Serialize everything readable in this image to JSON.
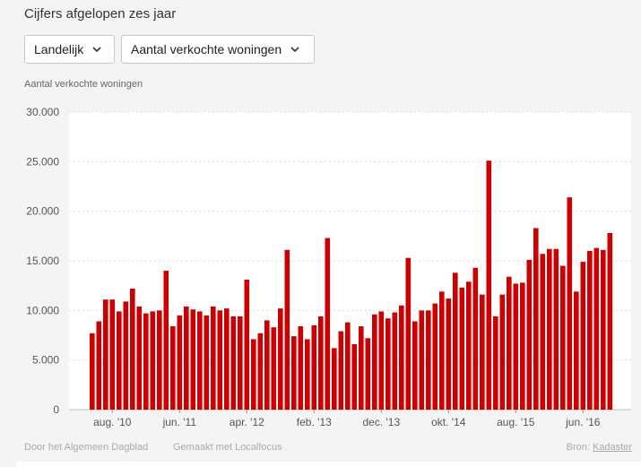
{
  "header": {
    "title": "Cijfers afgelopen zes jaar",
    "region_select": "Landelijk",
    "metric_select": "Aantal verkochte woningen",
    "axis_caption": "Aantal verkochte woningen"
  },
  "footer": {
    "credit_ad": "Door het Algemeen Dagblad",
    "credit_lf": "Gemaakt met Localfocus",
    "source_prefix": "Bron:",
    "source_link": "Kadaster"
  },
  "colors": {
    "bar": "#cc0000",
    "plot_bg": "#ffffff",
    "page_bg": "#f4f4f4",
    "grid": "#dddddd"
  },
  "icons": {
    "select_arrow": "chevron-down-icon"
  },
  "chart_data": {
    "type": "bar",
    "title": "",
    "xlabel": "",
    "ylabel": "Aantal verkochte woningen",
    "ylim": [
      0,
      30000
    ],
    "yticks": [
      "0",
      "5.000",
      "10.000",
      "15.000",
      "20.000",
      "25.000",
      "30.000"
    ],
    "grid": true,
    "xtick_labels": [
      {
        "label": "aug. '10",
        "index": 3
      },
      {
        "label": "jun. '11",
        "index": 13
      },
      {
        "label": "apr. '12",
        "index": 23
      },
      {
        "label": "feb. '13",
        "index": 33
      },
      {
        "label": "dec. '13",
        "index": 43
      },
      {
        "label": "okt. '14",
        "index": 53
      },
      {
        "label": "aug. '15",
        "index": 63
      },
      {
        "label": "jun. '16",
        "index": 73
      }
    ],
    "series": [
      {
        "values": [
          7700,
          8900,
          11100,
          11100,
          9900,
          10900,
          12200,
          10400,
          9700,
          9900,
          10000,
          14000,
          8400,
          9500,
          10400,
          10100,
          9900,
          9500,
          10400,
          10000,
          10200,
          9400,
          9400,
          13100,
          7100,
          7700,
          9000,
          8300,
          10200,
          16100,
          7400,
          8400,
          7100,
          8500,
          9400,
          17300,
          6200,
          7900,
          8800,
          6600,
          8400,
          7200,
          9600,
          9900,
          9200,
          9800,
          10500,
          15300,
          8900,
          10000,
          10000,
          10700,
          11900,
          11200,
          13800,
          12300,
          12900,
          14300,
          11600,
          25100,
          9400,
          11600,
          13400,
          12700,
          12800,
          15100,
          18300,
          15700,
          16200,
          16200,
          14500,
          21400,
          11900,
          14900,
          16000,
          16300,
          16100,
          17800
        ]
      }
    ]
  }
}
